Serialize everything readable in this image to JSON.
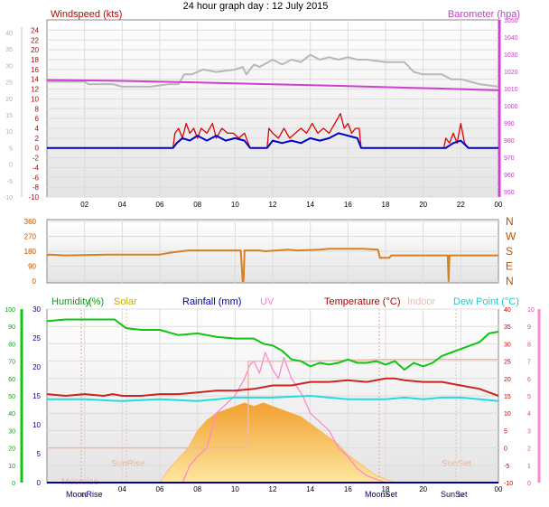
{
  "title": "24 hour graph day : 12 July 2015",
  "colors": {
    "wind": "#e00000",
    "windAvg": "#0000cc",
    "baro": "#d040d0",
    "gray": "#b8b8b8",
    "dir": "#d88020",
    "hum": "#11c411",
    "solar": "#f5b440",
    "rain": "#0000cc",
    "uv": "#ff88cc",
    "temp": "#cc2222",
    "indoor": "#f0b8a8",
    "dew": "#22dddd",
    "dark": "#0000aa"
  },
  "panel1": {
    "left_title": "Windspeed (kts)",
    "right_title": "Barometer (hpa)",
    "left_ticks": [
      "24",
      "22",
      "20",
      "18",
      "16",
      "14",
      "12",
      "10",
      "8",
      "6",
      "4",
      "2",
      "0",
      "-2",
      "-4",
      "-6",
      "-8",
      "-10"
    ],
    "outer_left_ticks": [
      "40",
      "35",
      "30",
      "25",
      "20",
      "15",
      "10",
      "5",
      "0",
      "-5",
      "-10"
    ],
    "right_ticks": [
      "1050",
      "1040",
      "1030",
      "1020",
      "1010",
      "1000",
      "990",
      "980",
      "970",
      "960",
      "950"
    ],
    "time_ticks": [
      "02",
      "04",
      "06",
      "08",
      "10",
      "12",
      "14",
      "16",
      "18",
      "20",
      "22",
      "00"
    ]
  },
  "panel2": {
    "left_ticks": [
      "360",
      "270",
      "180",
      "90",
      "0"
    ],
    "right_ticks": [
      "N",
      "W",
      "S",
      "E",
      "N"
    ]
  },
  "panel3": {
    "legend": {
      "humidity": "Humidity",
      "humidity_unit": "(%)",
      "solar": "Solar",
      "rainfall": "Rainfall (mm)",
      "uv": "UV",
      "temperature": "Temperature (°C)",
      "indoor": "Indoor",
      "dewpoint": "Dew Point (°C)"
    },
    "hum_ticks": [
      "100",
      "90",
      "80",
      "70",
      "60",
      "50",
      "40",
      "30",
      "20",
      "10",
      "0"
    ],
    "rain_ticks": [
      "30",
      "25",
      "20",
      "15",
      "10",
      "5",
      "0"
    ],
    "temp_ticks": [
      "40",
      "35",
      "30",
      "25",
      "20",
      "15",
      "10",
      "5",
      "0",
      "-5",
      "-10"
    ],
    "uv_ticks": [
      "10",
      "9",
      "8",
      "7",
      "6",
      "5",
      "4",
      "3",
      "2",
      "1",
      "0"
    ],
    "time_ticks": [
      "04",
      "06",
      "08",
      "10",
      "12",
      "14",
      "16",
      "18",
      "20",
      "00"
    ],
    "markers": {
      "moonrise_top": "Moonrise",
      "moonrise_bottom": "MoonRise",
      "sunrise": "SunRise",
      "moonset": "MoonSet",
      "sunset_top": "SunSet",
      "sunset_bottom": "SunSet"
    },
    "bottom_time_ticks": [
      "02",
      "18",
      "22"
    ]
  },
  "chart_data": [
    {
      "type": "line",
      "x_unit": "hour of day",
      "xlim": [
        0,
        24
      ],
      "y_left_lim": [
        -10,
        25
      ],
      "y_right_lim": [
        950,
        1050
      ],
      "series": [
        {
          "name": "Barometer (hpa)",
          "axis": "right",
          "x": [
            0,
            4,
            8,
            12,
            16,
            19,
            21,
            24
          ],
          "y": [
            1015,
            1014.5,
            1013.5,
            1012.5,
            1011.5,
            1010.5,
            1010,
            1009
          ]
        },
        {
          "axis": "left",
          "x": [
            0,
            2,
            2.2,
            3.5,
            4,
            5.5,
            6.5,
            7,
            7.3,
            7.7,
            8.3,
            9,
            10,
            10.4,
            10.6,
            11,
            11.3,
            12,
            12.5,
            13,
            13.5,
            14,
            14.5,
            15,
            15.5,
            16,
            16.5,
            17,
            18,
            19,
            19.5,
            20,
            21,
            21.5,
            22,
            22.5,
            23,
            24
          ],
          "y": [
            13.5,
            13.5,
            13,
            13,
            12.5,
            12.5,
            13,
            13,
            15,
            15,
            16,
            15.5,
            16,
            16.5,
            15,
            17,
            16.5,
            18,
            17,
            18,
            17.5,
            19,
            18,
            18.5,
            18,
            18.5,
            18,
            18,
            17.5,
            17.5,
            15.5,
            15,
            15,
            14,
            14,
            13.5,
            13,
            12.5
          ]
        },
        {
          "name": "Windspeed (kts)",
          "axis": "left",
          "x": [
            0,
            6.7,
            6.8,
            7.0,
            7.2,
            7.4,
            7.6,
            7.8,
            8.0,
            8.2,
            8.5,
            8.8,
            9.0,
            9.3,
            9.6,
            9.9,
            10.2,
            10.5,
            10.7,
            10.8,
            11.7,
            11.8,
            12.0,
            12.3,
            12.6,
            12.9,
            13.2,
            13.5,
            13.8,
            14.1,
            14.4,
            14.7,
            15.0,
            15.3,
            15.6,
            15.8,
            16.0,
            16.2,
            16.4,
            16.6,
            16.7,
            21.1,
            21.2,
            21.4,
            21.6,
            21.8,
            22.0,
            22.2,
            22.4,
            22.5,
            24
          ],
          "y": [
            0,
            0,
            3,
            4,
            2,
            5,
            3,
            4,
            2,
            4,
            3,
            5,
            2,
            4,
            3,
            3,
            2,
            3,
            1,
            0,
            0,
            4,
            3,
            2,
            4,
            2,
            3,
            4,
            3,
            5,
            3,
            4,
            3,
            5,
            7,
            4,
            5,
            3,
            4,
            4,
            0,
            0,
            2,
            1,
            3,
            1,
            5,
            1,
            0,
            0,
            0
          ]
        },
        {
          "axis": "left",
          "x": [
            0,
            6.7,
            6.9,
            7.2,
            7.6,
            8.0,
            8.5,
            9.0,
            9.5,
            10.0,
            10.5,
            10.8,
            11.7,
            12.0,
            12.5,
            13.0,
            13.5,
            14.0,
            14.5,
            15.0,
            15.5,
            16.0,
            16.5,
            16.7,
            21.2,
            21.6,
            22.0,
            22.4,
            24
          ],
          "y": [
            0,
            0,
            1,
            2,
            1.5,
            2.5,
            1.5,
            2.5,
            1.5,
            2,
            1.5,
            0,
            0,
            1.5,
            1,
            1.5,
            1,
            2,
            1.5,
            2,
            3,
            2.5,
            2,
            0,
            0,
            1,
            1.5,
            0,
            0
          ]
        }
      ]
    },
    {
      "type": "line",
      "x_unit": "hour of day",
      "xlim": [
        0,
        24
      ],
      "ylim": [
        0,
        360
      ],
      "series": [
        {
          "axis": "left",
          "x": [
            0,
            0.1,
            1.0,
            3.2,
            3.8,
            6.0,
            6.5,
            7.5,
            10.3,
            10.4,
            10.45,
            10.5,
            11.3,
            11.6,
            12.8,
            13.3,
            14.5,
            15.0,
            16.8,
            17.6,
            17.7,
            18.2,
            18.3,
            21.3,
            21.35,
            21.4,
            24
          ],
          "y": [
            155,
            160,
            155,
            160,
            160,
            160,
            170,
            185,
            185,
            0,
            0,
            185,
            185,
            180,
            190,
            185,
            190,
            195,
            195,
            190,
            140,
            140,
            155,
            155,
            0,
            155,
            155
          ]
        }
      ]
    },
    {
      "type": "area",
      "x_unit": "hour of day",
      "xlim": [
        0,
        24
      ],
      "series": [
        {
          "name": "Solar",
          "axis": "temp",
          "x": [
            0,
            6.0,
            6.5,
            7.0,
            7.5,
            8.0,
            8.5,
            9.0,
            9.5,
            10.0,
            10.5,
            11.0,
            11.5,
            12.0,
            12.5,
            13.0,
            13.5,
            14.0,
            14.5,
            15.0,
            15.5,
            16.0,
            16.5,
            17.0,
            17.5,
            18.0,
            18.5,
            24
          ],
          "y": [
            -10,
            -10,
            -6,
            -3,
            0,
            5,
            8,
            10,
            11,
            12,
            13,
            12,
            13,
            12,
            11,
            10,
            9,
            7,
            5,
            3,
            1,
            -2,
            -4,
            -6,
            -8,
            -9,
            -10,
            -10
          ]
        },
        {
          "name": "Humidity (%)",
          "axis": "hum",
          "x": [
            0,
            1,
            2,
            3,
            3.6,
            4.2,
            5,
            6,
            7,
            8,
            9,
            10,
            11,
            11.5,
            12,
            12.5,
            13,
            13.5,
            14,
            14.5,
            15,
            15.5,
            16,
            16.5,
            17,
            17.5,
            18,
            18.5,
            19,
            19.5,
            20,
            20.5,
            21,
            21.5,
            22,
            22.5,
            23,
            23.5,
            24
          ],
          "y": [
            93,
            94,
            94,
            94,
            94,
            89,
            88,
            88,
            85,
            86,
            84,
            83,
            83,
            80,
            79,
            76,
            71,
            70,
            67,
            69,
            68,
            69,
            71,
            69,
            69,
            70,
            68,
            70,
            65,
            69,
            67,
            69,
            73,
            75,
            77,
            79,
            81,
            86,
            87
          ]
        },
        {
          "name": "Temperature (°C)",
          "axis": "temp",
          "x": [
            0,
            1,
            2,
            3,
            3.5,
            4,
            5,
            6,
            7,
            8,
            9,
            10,
            11,
            12,
            13,
            14,
            15,
            16,
            17,
            18,
            18.5,
            19,
            20,
            21,
            22,
            23,
            23.5,
            24
          ],
          "y": [
            15.5,
            15,
            15.5,
            15,
            15.5,
            15,
            15,
            15.5,
            15.5,
            16,
            16.5,
            16.5,
            17,
            18,
            18,
            19,
            19,
            19.5,
            19,
            20,
            20,
            19.5,
            19,
            19,
            18,
            17,
            16,
            15
          ]
        },
        {
          "name": "Dew Point (°C)",
          "axis": "temp",
          "x": [
            0,
            2,
            4,
            6,
            8,
            10,
            12,
            14,
            16,
            18,
            19,
            20,
            21,
            22,
            23,
            24
          ],
          "y": [
            14,
            14,
            13.5,
            14,
            13.5,
            14.5,
            14.5,
            15,
            14,
            14,
            14.5,
            14,
            14.5,
            14.5,
            14,
            13.5
          ]
        },
        {
          "name": "UV",
          "axis": "uv",
          "x": [
            0,
            7.2,
            7.6,
            8.0,
            8.5,
            9.0,
            9.5,
            10.0,
            10.5,
            10.8,
            11.0,
            11.3,
            11.6,
            12.0,
            12.3,
            12.6,
            13.0,
            13.3,
            13.6,
            14.0,
            14.5,
            15.0,
            15.5,
            16.0,
            16.5,
            17.0,
            17.5,
            18.0,
            24
          ],
          "y": [
            0,
            0,
            1,
            1.5,
            2,
            4,
            4.5,
            5,
            6,
            6.8,
            7,
            6.3,
            7.5,
            6.5,
            6,
            7.2,
            6,
            5.5,
            5,
            4,
            3.5,
            3,
            2,
            1.5,
            0.8,
            0.4,
            0.2,
            0,
            0
          ]
        },
        {
          "name": "Indoor",
          "axis": "temp",
          "x": [
            0,
            6.7,
            6.7,
            10.7,
            10.7,
            14,
            18,
            20,
            24
          ],
          "y": [
            0,
            0,
            0,
            0,
            25,
            25,
            25.5,
            25.5,
            25.5
          ]
        },
        {
          "name": "Rainfall (mm)",
          "axis": "rain",
          "x": [
            0,
            24
          ],
          "y": [
            0,
            0
          ]
        }
      ]
    }
  ]
}
